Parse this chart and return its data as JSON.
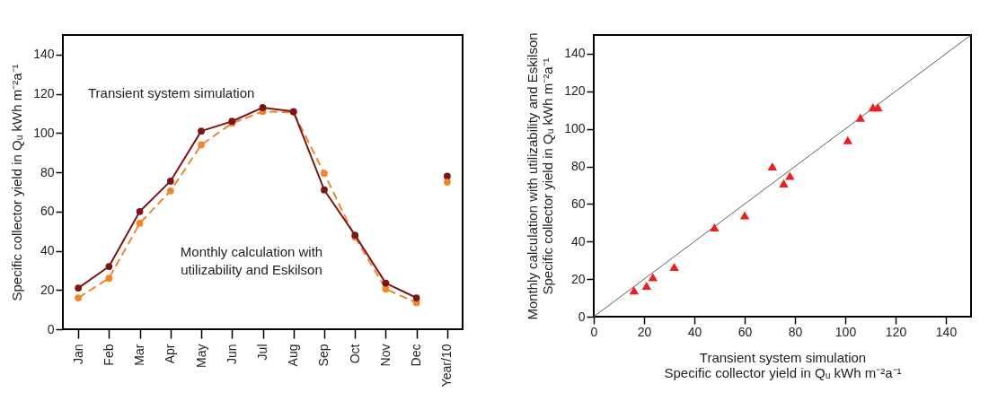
{
  "chart_data": [
    {
      "type": "line",
      "ylabel": "Specific collector yield in Qᵤ kWh m⁻²a⁻¹",
      "categories": [
        "Jan",
        "Feb",
        "Mar",
        "Apr",
        "May",
        "Jun",
        "Jul",
        "Aug",
        "Sep",
        "Oct",
        "Nov",
        "Dec",
        "Year/10"
      ],
      "ylim": [
        0,
        150
      ],
      "yticks": [
        0,
        20,
        40,
        60,
        80,
        100,
        120,
        140
      ],
      "grid": false,
      "marker": "circle",
      "annotations": [
        "Transient system simulation",
        "Monthly calculation with\nutilizability and Eskilson"
      ],
      "series": [
        {
          "color": "#f0852d",
          "line_style": "dashed",
          "values": [
            16,
            26,
            54,
            70.5,
            94,
            105,
            111,
            110.5,
            79.5,
            47,
            20.5,
            13.5,
            null
          ]
        },
        {
          "color": "#7b1416",
          "line_style": "solid",
          "values": [
            21,
            32,
            60,
            75.5,
            101,
            106,
            113,
            111,
            71,
            48,
            23.5,
            16,
            null
          ]
        },
        {
          "type": "scatter",
          "color": "#7b1416",
          "x": [
            "Year/10"
          ],
          "values": [
            78
          ]
        },
        {
          "type": "scatter",
          "color": "#f0852d",
          "x": [
            "Year/10"
          ],
          "values": [
            75
          ]
        }
      ]
    },
    {
      "type": "scatter",
      "xlabel": "Transient system simulation\nSpecific collector yield in Qᵤ kWh m⁻²a⁻¹",
      "ylabel": "Monthly calculation with utilizability and Eskilson\nSpecific collector yield in Qᵤ kWh m⁻²a⁻¹",
      "xlim": [
        0,
        150
      ],
      "xticks": [
        0,
        20,
        40,
        60,
        80,
        100,
        120,
        140
      ],
      "ylim": [
        0,
        150
      ],
      "yticks": [
        0,
        20,
        40,
        60,
        80,
        100,
        120,
        140
      ],
      "grid": false,
      "marker": "triangle",
      "series": [
        {
          "type": "line",
          "color": "#606060",
          "marker": "none",
          "x": [
            0,
            150
          ],
          "values": [
            0,
            150
          ]
        },
        {
          "color": "#e8201f",
          "x": [
            16,
            21,
            23.5,
            32,
            48,
            60,
            71,
            75.5,
            78,
            101,
            106,
            111,
            113
          ],
          "values": [
            14,
            16.5,
            21,
            26.5,
            47.5,
            54,
            80,
            71,
            75,
            94,
            106,
            111.5,
            111.5
          ]
        }
      ]
    }
  ]
}
